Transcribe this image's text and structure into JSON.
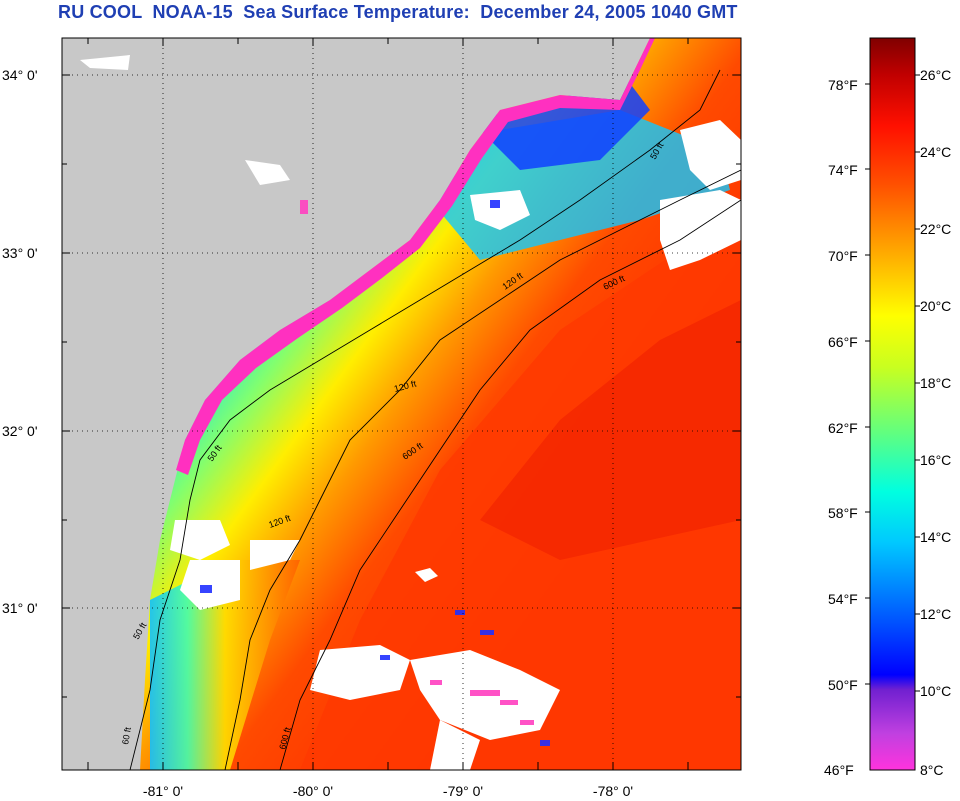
{
  "title": "RU COOL  NOAA-15  Sea Surface Temperature:  December 24, 2005 1040 GMT",
  "map": {
    "lat_labels": [
      "34° 0'",
      "33° 0'",
      "32° 0'",
      "31° 0'"
    ],
    "lon_labels": [
      "-81° 0'",
      "-80° 0'",
      "-79° 0'",
      "-78° 0'"
    ],
    "contour_labels": {
      "c50": "50 ft",
      "c120": "120 ft",
      "c600": "600 ft"
    },
    "colors": {
      "land": "#c8c8c8",
      "cloud": "#ffffff",
      "contour": "#000000"
    }
  },
  "colorbar": {
    "fahrenheit": [
      "78°F",
      "74°F",
      "70°F",
      "66°F",
      "62°F",
      "58°F",
      "54°F",
      "50°F",
      "46°F"
    ],
    "celsius": [
      "26°C",
      "24°C",
      "22°C",
      "20°C",
      "18°C",
      "16°C",
      "14°C",
      "12°C",
      "10°C",
      "8°C"
    ],
    "range_c": [
      8,
      27
    ],
    "colors": [
      "#ff33cc",
      "#8a2be2",
      "#0000ff",
      "#00a0ff",
      "#00ffff",
      "#80ff80",
      "#ffff00",
      "#ffaa00",
      "#ff3300",
      "#e00000",
      "#800000"
    ]
  }
}
